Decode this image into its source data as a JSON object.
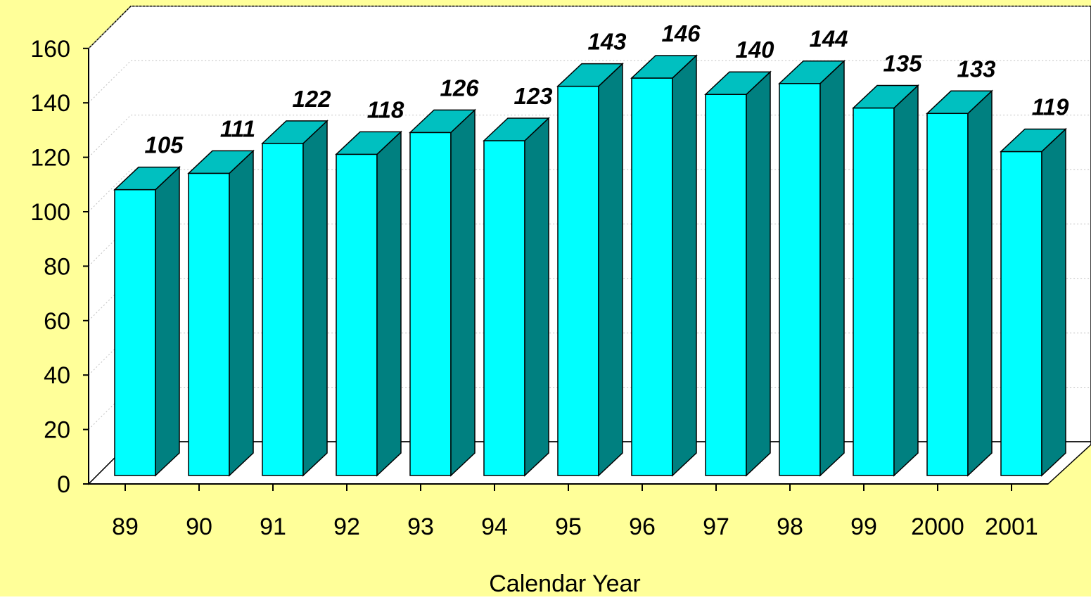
{
  "chart_data": {
    "type": "bar",
    "style": "3d",
    "categories": [
      "89",
      "90",
      "91",
      "92",
      "93",
      "94",
      "95",
      "96",
      "97",
      "98",
      "99",
      "2000",
      "2001"
    ],
    "values": [
      105,
      111,
      122,
      118,
      126,
      123,
      143,
      146,
      140,
      144,
      135,
      133,
      119
    ],
    "data_labels": [
      "105",
      "111",
      "122",
      "118",
      "126",
      "123",
      "143",
      "146",
      "140",
      "144",
      "135",
      "133",
      "119"
    ],
    "y_ticks": [
      "0",
      "20",
      "40",
      "60",
      "80",
      "100",
      "120",
      "140",
      "160"
    ],
    "title": "",
    "xlabel": "Calendar Year",
    "ylabel": "",
    "ylim": [
      0,
      160
    ],
    "grid": "horizontal dotted",
    "legend": "none"
  },
  "colors": {
    "background": "#ffff99",
    "plot_wall": "#ffffff",
    "bar_front": "#00ffff",
    "bar_top": "#00c0c0",
    "bar_side": "#008080",
    "gridline": "#c0c0c0",
    "axis": "#000000"
  }
}
